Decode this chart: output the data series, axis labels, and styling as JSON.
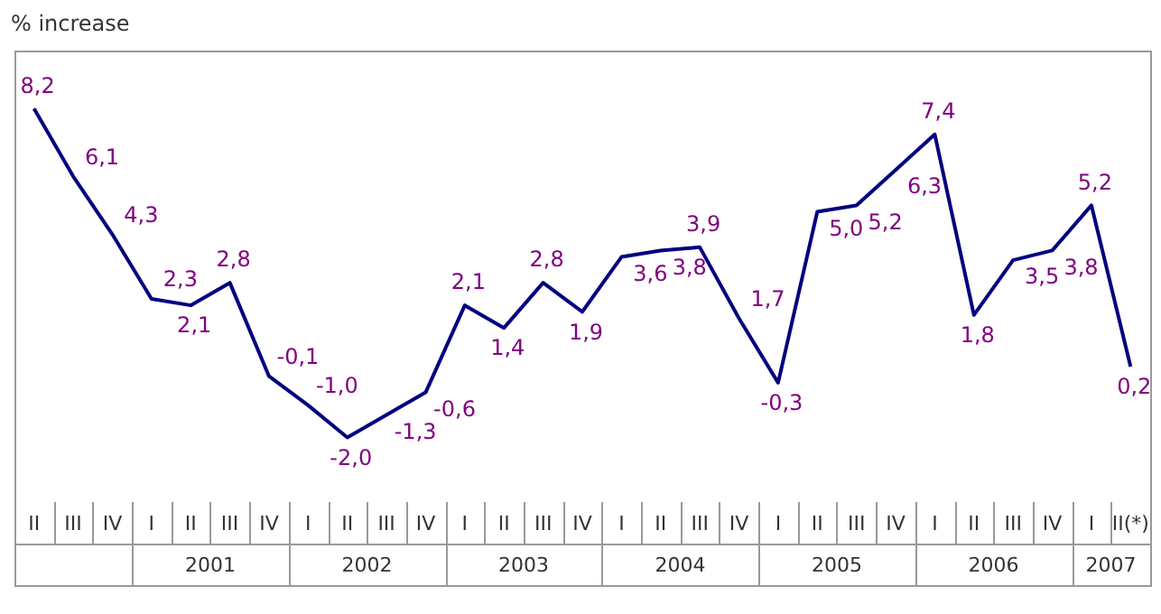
{
  "chart_data": {
    "type": "line",
    "ylabel": "% increase",
    "categories": [
      "II",
      "III",
      "IV",
      "I",
      "II",
      "III",
      "IV",
      "I",
      "II",
      "III",
      "IV",
      "I",
      "II",
      "III",
      "IV",
      "I",
      "II",
      "III",
      "IV",
      "I",
      "II",
      "III",
      "IV",
      "I",
      "II",
      "III",
      "IV",
      "I",
      "II(*)"
    ],
    "annotations": [
      "2001",
      "2002",
      "2003",
      "2004",
      "2005",
      "2006",
      "2007"
    ],
    "series": [
      {
        "color": "#000080",
        "values": [
          8.2,
          6.1,
          4.3,
          2.3,
          2.1,
          2.8,
          -0.1,
          -1.0,
          -2.0,
          -1.3,
          -0.6,
          2.1,
          1.4,
          2.8,
          1.9,
          3.6,
          3.8,
          3.9,
          1.7,
          -0.3,
          5.0,
          5.2,
          6.3,
          7.4,
          1.8,
          3.5,
          3.8,
          5.2,
          0.2
        ],
        "value_labels": [
          "8,2",
          "6,1",
          "4,3",
          "2,3",
          "2,1",
          "2,8",
          "-0,1",
          "-1,0",
          "-2,0",
          "-1,3",
          "-0,6",
          "2,1",
          "1,4",
          "2,8",
          "1,9",
          "3,6",
          "3,8",
          "3,9",
          "1,7",
          "-0,3",
          "5,0",
          "5,2",
          "6,3",
          "7,4",
          "1,8",
          "3,5",
          "3,8",
          "5,2",
          "0,2"
        ]
      }
    ],
    "marker": "none",
    "line_style": "solid",
    "grid": false,
    "legend": false
  }
}
